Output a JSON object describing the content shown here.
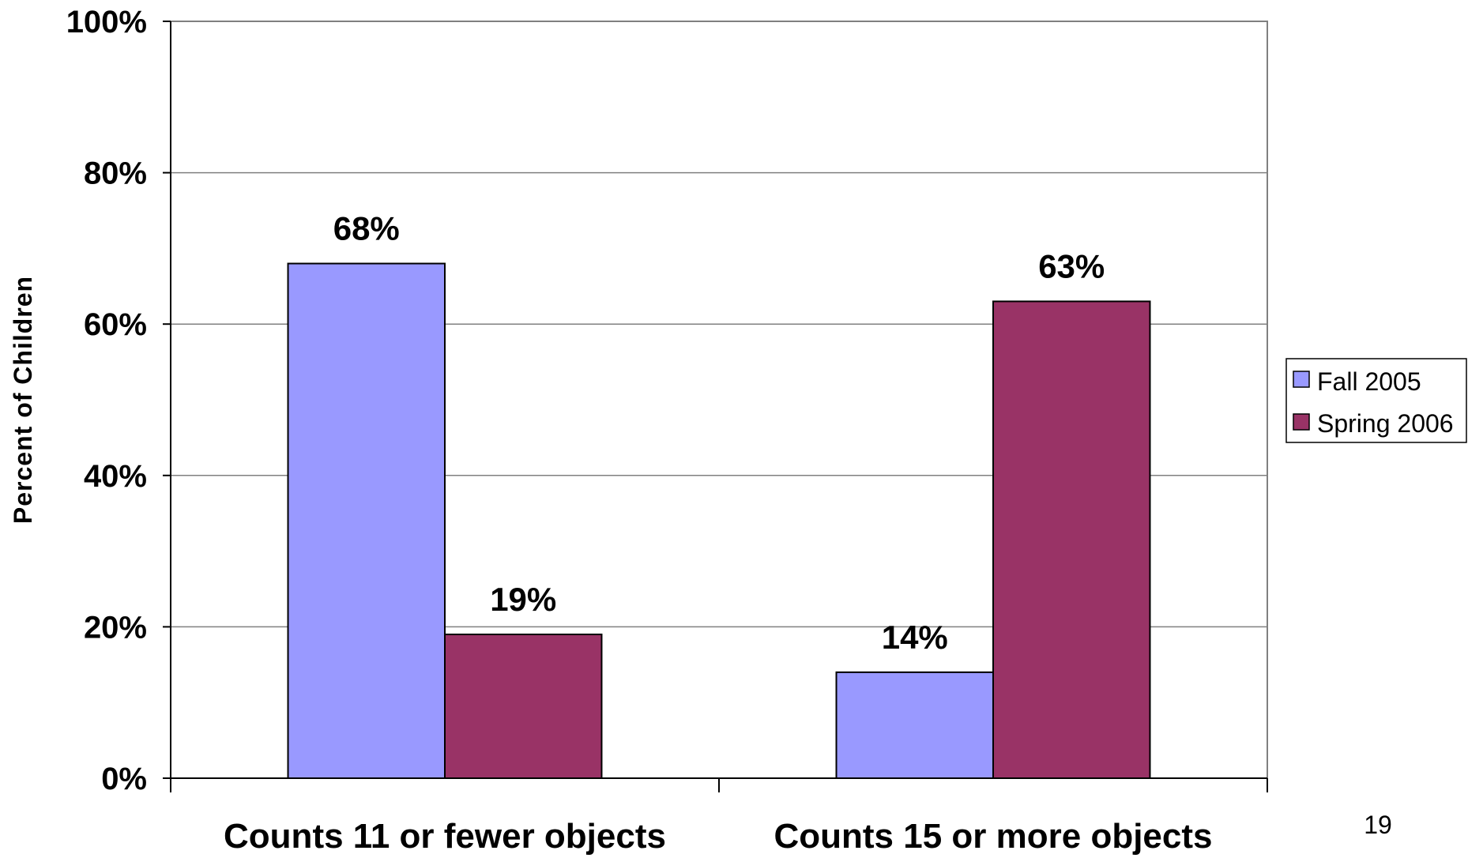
{
  "chart_data": {
    "type": "bar",
    "categories": [
      "Counts 11 or fewer objects",
      "Counts 15 or more objects"
    ],
    "series": [
      {
        "name": "Fall 2005",
        "values": [
          68,
          14
        ],
        "color": "#9999ff"
      },
      {
        "name": "Spring 2006",
        "values": [
          19,
          63
        ],
        "color": "#993366"
      }
    ],
    "data_labels": [
      [
        "68%",
        "14%"
      ],
      [
        "19%",
        "63%"
      ]
    ],
    "y_ticks": [
      "0%",
      "20%",
      "40%",
      "60%",
      "80%",
      "100%"
    ],
    "ylim": [
      0,
      100
    ],
    "ylabel": "Percent of Children",
    "xlabel": "",
    "title": "",
    "grid": true,
    "legend_position": "right"
  },
  "page_number": "19"
}
